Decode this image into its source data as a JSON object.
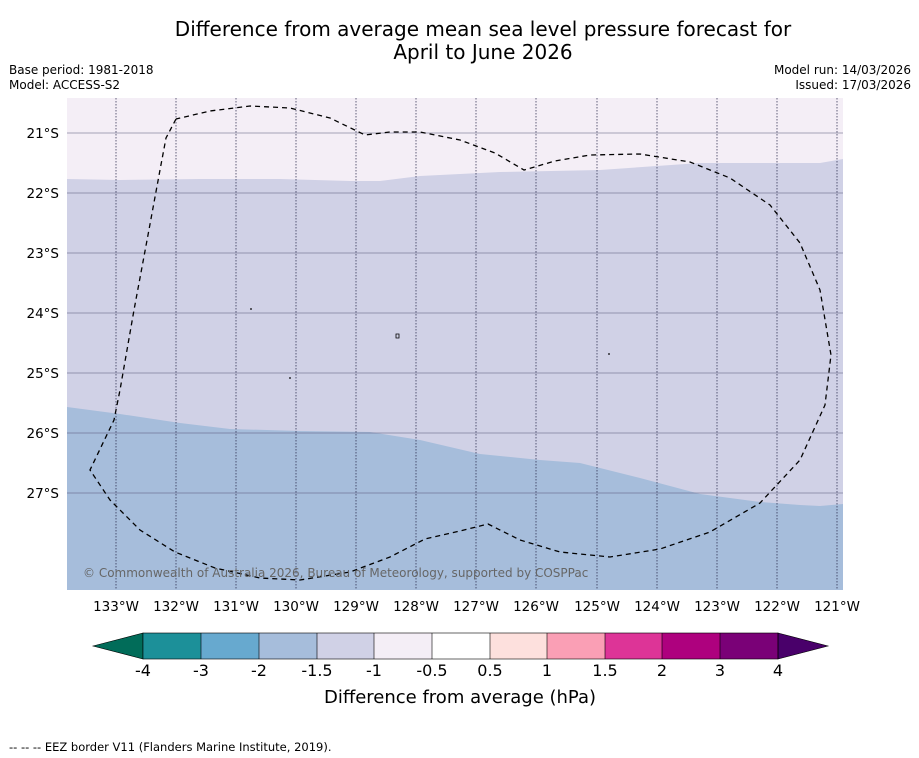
{
  "header": {
    "title_line1": "Difference from average mean sea level pressure forecast for",
    "title_line2": "April to June 2026",
    "base_period": "Base period: 1981-2018",
    "model": "Model: ACCESS-S2",
    "model_run": "Model run: 14/03/2026",
    "issued": "Issued: 17/03/2026"
  },
  "map": {
    "lon_labels": [
      "133°W",
      "132°W",
      "131°W",
      "130°W",
      "129°W",
      "128°W",
      "127°W",
      "126°W",
      "125°W",
      "124°W",
      "123°W",
      "122°W",
      "121°W"
    ],
    "lat_labels": [
      "21°S",
      "22°S",
      "23°S",
      "24°S",
      "25°S",
      "26°S",
      "27°S"
    ],
    "copyright": "© Commonwealth of Australia 2026, Bureau of Meteorology, supported by COSPPac",
    "regions": [
      {
        "name": "-1 to -0.5",
        "color": "#f4eef6"
      },
      {
        "name": "-1.5 to -1",
        "color": "#d0d1e6"
      },
      {
        "name": "-2 to -1.5",
        "color": "#a6bddb"
      }
    ]
  },
  "colorbar": {
    "title": "Difference from average (hPa)",
    "tick_labels": [
      "-4",
      "-3",
      "-2",
      "-1.5",
      "-1",
      "-0.5",
      "0.5",
      "1",
      "1.5",
      "2",
      "3",
      "4"
    ],
    "colors": [
      "#1c9099",
      "#67a9cf",
      "#a6bddb",
      "#d0d1e6",
      "#f4eef6",
      "#ffffff",
      "#fde0dd",
      "#fa9fb5",
      "#dd3497",
      "#ae017e",
      "#7a0177"
    ],
    "under_color": "#016c59",
    "over_color": "#49006a"
  },
  "footer": {
    "eez_note": "--  --  -- EEZ border V11 (Flanders Marine Institute, 2019)."
  }
}
